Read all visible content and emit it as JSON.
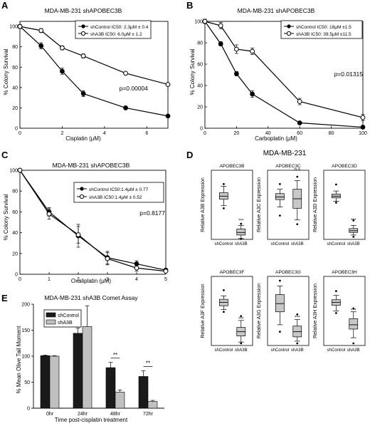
{
  "panel_A": {
    "letter": "A",
    "title": "MDA-MB-231 shAPOBEC3B",
    "ylabel": "% Colony Survival",
    "xlabel": "Cisplatin (μM)",
    "xticks": [
      "0",
      "2",
      "4",
      "6"
    ],
    "yticks": [
      "0",
      "20",
      "40",
      "60",
      "80",
      "100"
    ],
    "legend": [
      "shControl IC50: 2.3μM ± 0.4",
      "shA3B IC50: 6.0μM ± 1.2"
    ],
    "pvalue": "p=0.00004"
  },
  "panel_B": {
    "letter": "B",
    "title": "MDA-MB-231 shAPOBEC3B",
    "ylabel": "% Colony Survival",
    "xlabel": "Carboplatin (μM)",
    "xticks": [
      "0",
      "20",
      "40",
      "60",
      "80",
      "100"
    ],
    "yticks": [
      "0",
      "20",
      "40",
      "60",
      "80",
      "100"
    ],
    "legend": [
      "shControl IC50: 18μM ±1.5",
      "shA3B IC50: 39.5μM ±11.5"
    ],
    "pvalue": "p=0.01315"
  },
  "panel_C": {
    "letter": "C",
    "title": "MDA-MB-231 shAPOBEC3B",
    "ylabel": "% Colony Survival",
    "xlabel": "Oxaliplatin (μM)",
    "xticks": [
      "0",
      "1",
      "2",
      "3",
      "4",
      "5"
    ],
    "yticks": [
      "0",
      "20",
      "40",
      "60",
      "80",
      "100"
    ],
    "legend": [
      "shControl IC50:1.4μM ± 0.77",
      "shA3B IC50:1.4μM ± 0.52"
    ],
    "pvalue": "p=0.8177"
  },
  "panel_D": {
    "letter": "D",
    "title": "MDA-MB-231",
    "xcats": [
      "shControl",
      "shA3B"
    ],
    "subplots": [
      {
        "title": "APOBEC3B",
        "ylabel": "Relative A3B Expression",
        "sig": "***"
      },
      {
        "title": "APOBEC3C",
        "ylabel": "Relative A3C Expression",
        "sig": "n.s"
      },
      {
        "title": "APOBEC3D",
        "ylabel": "Relative A3D Expression",
        "sig": "***"
      },
      {
        "title": "APOBEC3F",
        "ylabel": "Relative A3F Expression",
        "sig": "***"
      },
      {
        "title": "APOBEC3G",
        "ylabel": "Relative A3G Expression",
        "sig": "***"
      },
      {
        "title": "APOBEC3H",
        "ylabel": "Relative A3H Expression",
        "sig": "***"
      }
    ]
  },
  "panel_E": {
    "letter": "E",
    "title": "MDA-MB-231 shA3B Comet Assay",
    "ylabel": "% Mean Olive Tail Moment",
    "xlabel": "Time post-cisplatin treatment",
    "yticks": [
      "0",
      "50",
      "100",
      "150",
      "200"
    ],
    "legend": [
      "shControl",
      "shA3B"
    ],
    "sig": [
      "**",
      "**"
    ]
  },
  "chart_data": [
    {
      "type": "line",
      "title": "MDA-MB-231 shAPOBEC3B",
      "xlabel": "Cisplatin (μM)",
      "ylabel": "% Colony Survival",
      "xlim": [
        0,
        7
      ],
      "ylim": [
        0,
        105
      ],
      "grid": false,
      "legend_position": "top-right",
      "series": [
        {
          "name": "shControl IC50: 2.3μM ± 0.4",
          "marker": "filled-circle",
          "x": [
            0,
            1,
            2,
            3,
            5,
            7
          ],
          "y": [
            100,
            81,
            56,
            34,
            20,
            12
          ],
          "err": [
            2,
            3,
            3,
            3,
            1,
            1
          ]
        },
        {
          "name": "shA3B IC50: 6.0μM ± 1.2",
          "marker": "open-circle",
          "x": [
            0,
            1,
            2,
            3,
            5,
            7
          ],
          "y": [
            100,
            96,
            79,
            71,
            54,
            43
          ],
          "err": [
            1,
            2,
            2,
            2,
            1,
            1
          ]
        }
      ]
    },
    {
      "type": "line",
      "title": "MDA-MB-231 shAPOBEC3B",
      "xlabel": "Carboplatin (μM)",
      "ylabel": "% Colony Survival",
      "xlim": [
        0,
        100
      ],
      "ylim": [
        0,
        100
      ],
      "grid": false,
      "legend_position": "top-right",
      "series": [
        {
          "name": "shControl IC50: 18μM ±1.5",
          "marker": "filled-circle",
          "x": [
            0,
            10,
            20,
            30,
            60,
            100
          ],
          "y": [
            100,
            79,
            51,
            32,
            5,
            1
          ],
          "err": [
            2,
            2,
            2,
            3,
            1,
            0.5
          ]
        },
        {
          "name": "shA3B IC50: 39.5μM ±11.5",
          "marker": "open-circle",
          "x": [
            0,
            10,
            20,
            30,
            60,
            100
          ],
          "y": [
            100,
            96,
            74,
            72,
            25,
            10
          ],
          "err": [
            2,
            3,
            4,
            3,
            3,
            3
          ]
        }
      ]
    },
    {
      "type": "line",
      "title": "MDA-MB-231 shAPOBEC3B",
      "xlabel": "Oxaliplatin (μM)",
      "ylabel": "% Colony Survival",
      "xlim": [
        0,
        5
      ],
      "ylim": [
        0,
        100
      ],
      "grid": false,
      "legend_position": "top-right",
      "series": [
        {
          "name": "shControl IC50:1.4μM ± 0.77",
          "marker": "filled-circle",
          "x": [
            0,
            1,
            2,
            3,
            4,
            5
          ],
          "y": [
            100,
            60,
            37,
            16,
            10,
            4
          ],
          "err": [
            1,
            4,
            11,
            6,
            3,
            1
          ]
        },
        {
          "name": "shA3B IC50:1.4μM ± 0.52",
          "marker": "open-circle",
          "x": [
            0,
            1,
            2,
            3,
            4,
            5
          ],
          "y": [
            100,
            58,
            38,
            15,
            6,
            3
          ],
          "err": [
            1,
            5,
            8,
            6,
            3,
            1
          ]
        }
      ]
    },
    {
      "type": "box",
      "title": "MDA-MB-231",
      "categories": [
        "shControl",
        "shA3B"
      ],
      "ylim": [
        0,
        1.6
      ],
      "subplots": [
        {
          "title": "APOBEC3B",
          "ylabel": "Relative A3B Expression",
          "boxes": [
            {
              "min": 0.78,
              "q1": 0.93,
              "median": 1.0,
              "q3": 1.08,
              "max": 1.23,
              "outliers": [
                0.72,
                1.28
              ]
            },
            {
              "min": 0.02,
              "q1": 0.1,
              "median": 0.16,
              "q3": 0.24,
              "max": 0.32,
              "outliers": [
                0.36,
                0.01
              ]
            }
          ]
        },
        {
          "title": "APOBEC3C",
          "ylabel": "Relative A3C Expression",
          "boxes": [
            {
              "min": 0.75,
              "q1": 0.92,
              "median": 0.98,
              "q3": 1.06,
              "max": 1.16,
              "outliers": [
                0.55,
                1.28
              ]
            },
            {
              "min": 0.45,
              "q1": 0.72,
              "median": 0.94,
              "q3": 1.16,
              "max": 1.36,
              "outliers": [
                0.35,
                1.45
              ]
            }
          ]
        },
        {
          "title": "APOBEC3D",
          "ylabel": "Relative A3D Expression",
          "boxes": [
            {
              "min": 0.88,
              "q1": 0.96,
              "median": 1.0,
              "q3": 1.05,
              "max": 1.12,
              "outliers": [
                0.85,
                1.27
              ]
            },
            {
              "min": 0.1,
              "q1": 0.16,
              "median": 0.2,
              "q3": 0.25,
              "max": 0.32,
              "outliers": [
                0.44,
                0.06
              ]
            }
          ]
        },
        {
          "title": "APOBEC3F",
          "ylabel": "Relative A3F Expression",
          "boxes": [
            {
              "min": 0.83,
              "q1": 0.92,
              "median": 1.0,
              "q3": 1.07,
              "max": 1.15,
              "outliers": [
                0.78,
                1.28
              ]
            },
            {
              "min": 0.08,
              "q1": 0.22,
              "median": 0.32,
              "q3": 0.42,
              "max": 0.58,
              "outliers": [
                0.68,
                0.05
              ]
            }
          ]
        },
        {
          "title": "APOBEC3G",
          "ylabel": "Relative A3G Expression",
          "boxes": [
            {
              "min": 0.48,
              "q1": 0.78,
              "median": 0.97,
              "q3": 1.18,
              "max": 1.38,
              "outliers": [
                0.32,
                1.5
              ]
            },
            {
              "min": 0.1,
              "q1": 0.2,
              "median": 0.32,
              "q3": 0.45,
              "max": 0.6,
              "outliers": [
                0.72,
                0.05
              ]
            }
          ]
        },
        {
          "title": "APOBEC3H",
          "ylabel": "Relative A3H Expression",
          "boxes": [
            {
              "min": 0.8,
              "q1": 0.93,
              "median": 1.0,
              "q3": 1.06,
              "max": 1.16,
              "outliers": [
                0.75,
                1.26
              ]
            },
            {
              "min": 0.18,
              "q1": 0.38,
              "median": 0.48,
              "q3": 0.62,
              "max": 0.78,
              "outliers": [
                0.86,
                0.05
              ]
            }
          ]
        }
      ]
    },
    {
      "type": "bar",
      "title": "MDA-MB-231 shA3B Comet Assay",
      "xlabel": "Time post-cisplatin treatment",
      "ylabel": "% Mean Olive Tail Moment",
      "categories": [
        "0hr",
        "24hr",
        "48hr",
        "72hr"
      ],
      "ylim": [
        0,
        200
      ],
      "legend_position": "top-right",
      "series": [
        {
          "name": "shControl",
          "color": "#1a1a1a",
          "values": [
            101,
            144,
            78,
            61
          ],
          "err": [
            1,
            10,
            10,
            11
          ]
        },
        {
          "name": "shA3B",
          "color": "#c0c0c0",
          "values": [
            100,
            157,
            31,
            13
          ],
          "err": [
            1,
            40,
            4,
            2
          ]
        }
      ]
    }
  ]
}
